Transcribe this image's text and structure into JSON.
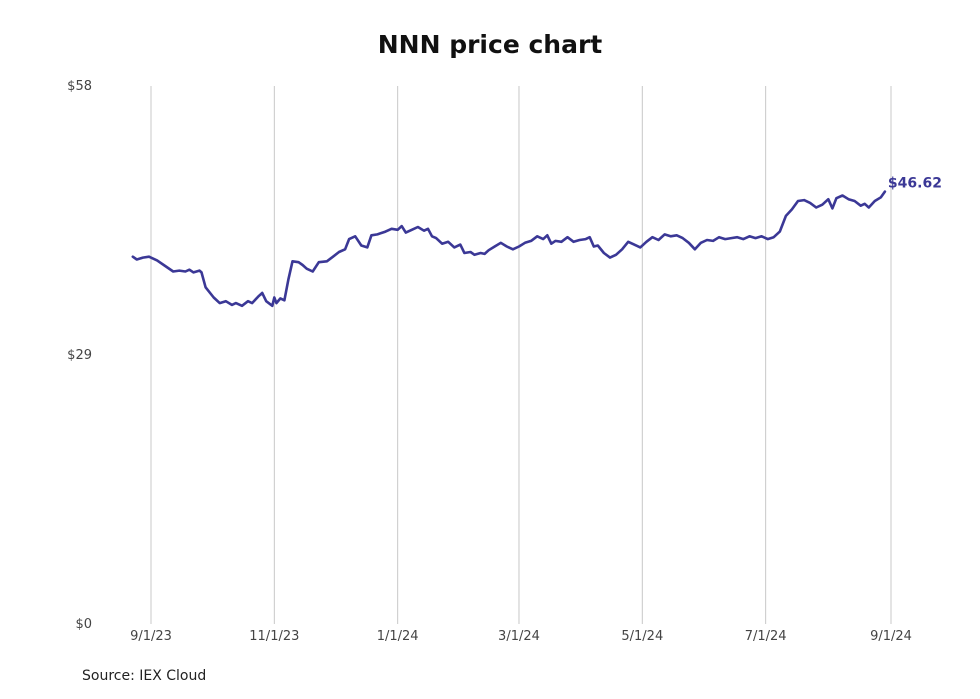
{
  "chart_data": {
    "type": "line",
    "title": "NNN price chart",
    "source": "Source: IEX Cloud",
    "ylim": [
      0,
      58
    ],
    "y_ticks": [
      {
        "value": 0,
        "label": "$0"
      },
      {
        "value": 29,
        "label": "$29"
      },
      {
        "value": 58,
        "label": "$58"
      }
    ],
    "x_ticks": [
      {
        "date": "2023-09-01",
        "label": "9/1/23"
      },
      {
        "date": "2023-11-01",
        "label": "11/1/23"
      },
      {
        "date": "2024-01-01",
        "label": "1/1/24"
      },
      {
        "date": "2024-03-01",
        "label": "3/1/24"
      },
      {
        "date": "2024-05-01",
        "label": "5/1/24"
      },
      {
        "date": "2024-07-01",
        "label": "7/1/24"
      },
      {
        "date": "2024-09-01",
        "label": "9/1/24"
      }
    ],
    "grid": {
      "vertical": true,
      "horizontal": false
    },
    "last_value_label": "$46.62",
    "colors": {
      "line": "#3b3896",
      "grid": "#c8c8c8"
    },
    "series": [
      {
        "points": [
          [
            "2023-08-23",
            39.6
          ],
          [
            "2023-08-25",
            39.3
          ],
          [
            "2023-08-28",
            39.5
          ],
          [
            "2023-08-31",
            39.6
          ],
          [
            "2023-09-04",
            39.2
          ],
          [
            "2023-09-08",
            38.6
          ],
          [
            "2023-09-12",
            38.0
          ],
          [
            "2023-09-15",
            38.1
          ],
          [
            "2023-09-18",
            38.0
          ],
          [
            "2023-09-20",
            38.2
          ],
          [
            "2023-09-22",
            37.9
          ],
          [
            "2023-09-25",
            38.1
          ],
          [
            "2023-09-26",
            37.9
          ],
          [
            "2023-09-28",
            36.3
          ],
          [
            "2023-10-02",
            35.2
          ],
          [
            "2023-10-05",
            34.6
          ],
          [
            "2023-10-08",
            34.8
          ],
          [
            "2023-10-11",
            34.4
          ],
          [
            "2023-10-13",
            34.6
          ],
          [
            "2023-10-16",
            34.3
          ],
          [
            "2023-10-19",
            34.8
          ],
          [
            "2023-10-21",
            34.6
          ],
          [
            "2023-10-24",
            35.3
          ],
          [
            "2023-10-26",
            35.7
          ],
          [
            "2023-10-28",
            34.8
          ],
          [
            "2023-10-31",
            34.3
          ],
          [
            "2023-11-01",
            35.2
          ],
          [
            "2023-11-02",
            34.6
          ],
          [
            "2023-11-04",
            35.1
          ],
          [
            "2023-11-06",
            34.9
          ],
          [
            "2023-11-08",
            37.2
          ],
          [
            "2023-11-10",
            39.1
          ],
          [
            "2023-11-13",
            39.0
          ],
          [
            "2023-11-15",
            38.7
          ],
          [
            "2023-11-17",
            38.3
          ],
          [
            "2023-11-20",
            38.0
          ],
          [
            "2023-11-23",
            39.0
          ],
          [
            "2023-11-27",
            39.1
          ],
          [
            "2023-11-30",
            39.6
          ],
          [
            "2023-12-03",
            40.1
          ],
          [
            "2023-12-06",
            40.4
          ],
          [
            "2023-12-08",
            41.5
          ],
          [
            "2023-12-11",
            41.8
          ],
          [
            "2023-12-14",
            40.8
          ],
          [
            "2023-12-17",
            40.6
          ],
          [
            "2023-12-19",
            41.9
          ],
          [
            "2023-12-22",
            42.0
          ],
          [
            "2023-12-26",
            42.3
          ],
          [
            "2023-12-29",
            42.6
          ],
          [
            "2024-01-01",
            42.5
          ],
          [
            "2024-01-03",
            42.9
          ],
          [
            "2024-01-05",
            42.2
          ],
          [
            "2024-01-08",
            42.5
          ],
          [
            "2024-01-11",
            42.8
          ],
          [
            "2024-01-14",
            42.4
          ],
          [
            "2024-01-16",
            42.6
          ],
          [
            "2024-01-18",
            41.8
          ],
          [
            "2024-01-20",
            41.6
          ],
          [
            "2024-01-23",
            41.0
          ],
          [
            "2024-01-26",
            41.2
          ],
          [
            "2024-01-29",
            40.6
          ],
          [
            "2024-02-01",
            40.9
          ],
          [
            "2024-02-03",
            40.0
          ],
          [
            "2024-02-06",
            40.1
          ],
          [
            "2024-02-08",
            39.8
          ],
          [
            "2024-02-11",
            40.0
          ],
          [
            "2024-02-13",
            39.9
          ],
          [
            "2024-02-15",
            40.3
          ],
          [
            "2024-02-18",
            40.7
          ],
          [
            "2024-02-21",
            41.1
          ],
          [
            "2024-02-24",
            40.7
          ],
          [
            "2024-02-27",
            40.4
          ],
          [
            "2024-03-01",
            40.7
          ],
          [
            "2024-03-04",
            41.1
          ],
          [
            "2024-03-07",
            41.3
          ],
          [
            "2024-03-10",
            41.8
          ],
          [
            "2024-03-13",
            41.5
          ],
          [
            "2024-03-15",
            41.9
          ],
          [
            "2024-03-17",
            41.0
          ],
          [
            "2024-03-19",
            41.3
          ],
          [
            "2024-03-22",
            41.2
          ],
          [
            "2024-03-25",
            41.7
          ],
          [
            "2024-03-28",
            41.2
          ],
          [
            "2024-03-31",
            41.4
          ],
          [
            "2024-04-03",
            41.5
          ],
          [
            "2024-04-05",
            41.7
          ],
          [
            "2024-04-07",
            40.7
          ],
          [
            "2024-04-09",
            40.8
          ],
          [
            "2024-04-12",
            40.0
          ],
          [
            "2024-04-15",
            39.5
          ],
          [
            "2024-04-18",
            39.8
          ],
          [
            "2024-04-21",
            40.4
          ],
          [
            "2024-04-24",
            41.2
          ],
          [
            "2024-04-27",
            40.9
          ],
          [
            "2024-04-30",
            40.6
          ],
          [
            "2024-05-03",
            41.2
          ],
          [
            "2024-05-06",
            41.7
          ],
          [
            "2024-05-09",
            41.4
          ],
          [
            "2024-05-12",
            42.0
          ],
          [
            "2024-05-15",
            41.8
          ],
          [
            "2024-05-18",
            41.9
          ],
          [
            "2024-05-21",
            41.6
          ],
          [
            "2024-05-24",
            41.1
          ],
          [
            "2024-05-27",
            40.4
          ],
          [
            "2024-05-30",
            41.1
          ],
          [
            "2024-06-02",
            41.4
          ],
          [
            "2024-06-05",
            41.3
          ],
          [
            "2024-06-08",
            41.7
          ],
          [
            "2024-06-11",
            41.5
          ],
          [
            "2024-06-14",
            41.6
          ],
          [
            "2024-06-17",
            41.7
          ],
          [
            "2024-06-20",
            41.5
          ],
          [
            "2024-06-23",
            41.8
          ],
          [
            "2024-06-26",
            41.6
          ],
          [
            "2024-06-29",
            41.8
          ],
          [
            "2024-07-02",
            41.5
          ],
          [
            "2024-07-05",
            41.7
          ],
          [
            "2024-07-08",
            42.3
          ],
          [
            "2024-07-11",
            44.0
          ],
          [
            "2024-07-14",
            44.7
          ],
          [
            "2024-07-17",
            45.6
          ],
          [
            "2024-07-20",
            45.7
          ],
          [
            "2024-07-23",
            45.4
          ],
          [
            "2024-07-26",
            44.9
          ],
          [
            "2024-07-29",
            45.2
          ],
          [
            "2024-08-01",
            45.8
          ],
          [
            "2024-08-03",
            44.8
          ],
          [
            "2024-08-05",
            45.9
          ],
          [
            "2024-08-08",
            46.2
          ],
          [
            "2024-08-11",
            45.8
          ],
          [
            "2024-08-14",
            45.6
          ],
          [
            "2024-08-17",
            45.1
          ],
          [
            "2024-08-19",
            45.3
          ],
          [
            "2024-08-21",
            44.9
          ],
          [
            "2024-08-24",
            45.6
          ],
          [
            "2024-08-27",
            46.0
          ],
          [
            "2024-08-29",
            46.62
          ]
        ]
      }
    ]
  }
}
